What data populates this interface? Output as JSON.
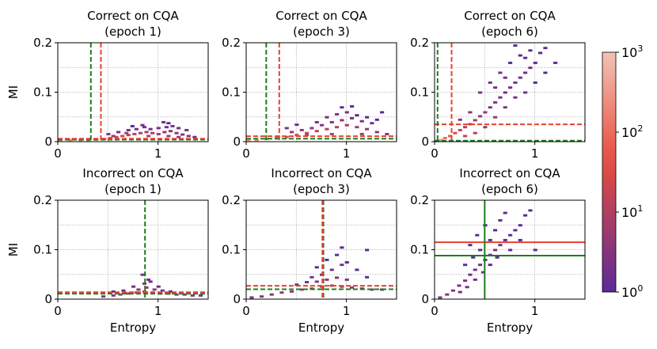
{
  "chart_data": {
    "type": "heatmap",
    "layout": "2x3 grid of 2D histograms",
    "xlabel": "Entropy",
    "ylabel": "MI",
    "xlim": [
      0,
      1.5
    ],
    "ylim": [
      0,
      0.2
    ],
    "xticks": [
      0,
      1
    ],
    "xtick_labels": [
      "0",
      "1"
    ],
    "yticks": [
      0,
      0.1,
      0.2
    ],
    "ytick_labels": [
      "0",
      "0.1",
      "0.2"
    ],
    "grid": true,
    "colorbar": {
      "scale": "log",
      "range": [
        1,
        1000
      ],
      "tick_base": "10",
      "ticks": [
        {
          "value": 1,
          "exp": "0"
        },
        {
          "value": 10,
          "exp": "1"
        },
        {
          "value": 100,
          "exp": "2"
        },
        {
          "value": 1000,
          "exp": "3"
        }
      ],
      "colors": {
        "low": "#5b2a96",
        "mid": "#e84d3d",
        "high": "#f2c3b6"
      }
    },
    "threshold_colors": {
      "green": "#1e7d1e",
      "red": "#e8402f"
    },
    "panels": [
      {
        "title_line1": "Correct on CQA",
        "title_line2": "(epoch 1)",
        "green_vline": 0.33,
        "red_vline": 0.43,
        "green_hline": 0.004,
        "red_hline": 0.006,
        "solid": false,
        "cells": [
          [
            0.02,
            0.004,
            180
          ],
          [
            0.12,
            0.004,
            160
          ],
          [
            0.22,
            0.004,
            150
          ],
          [
            0.3,
            0.004,
            120
          ],
          [
            0.38,
            0.005,
            90
          ],
          [
            0.46,
            0.006,
            60
          ],
          [
            0.52,
            0.008,
            40
          ],
          [
            0.58,
            0.01,
            25
          ],
          [
            0.64,
            0.012,
            20
          ],
          [
            0.7,
            0.014,
            15
          ],
          [
            0.76,
            0.016,
            12
          ],
          [
            0.82,
            0.018,
            10
          ],
          [
            0.88,
            0.02,
            8
          ],
          [
            0.94,
            0.018,
            7
          ],
          [
            1.0,
            0.016,
            6
          ],
          [
            1.06,
            0.02,
            5
          ],
          [
            1.12,
            0.022,
            4
          ],
          [
            1.18,
            0.018,
            4
          ],
          [
            1.24,
            0.015,
            3
          ],
          [
            1.3,
            0.012,
            3
          ],
          [
            1.36,
            0.01,
            2
          ],
          [
            0.5,
            0.016,
            3
          ],
          [
            0.6,
            0.02,
            2
          ],
          [
            0.7,
            0.024,
            2
          ],
          [
            0.78,
            0.026,
            2
          ],
          [
            0.86,
            0.03,
            2
          ],
          [
            0.92,
            0.026,
            2
          ],
          [
            1.0,
            0.028,
            2
          ],
          [
            1.08,
            0.03,
            2
          ],
          [
            0.84,
            0.034,
            2
          ],
          [
            1.05,
            0.04,
            2
          ],
          [
            1.14,
            0.032,
            2
          ],
          [
            1.2,
            0.028,
            2
          ],
          [
            1.28,
            0.024,
            2
          ],
          [
            0.74,
            0.032,
            1
          ],
          [
            1.1,
            0.038,
            1
          ],
          [
            0.55,
            0.012,
            5
          ],
          [
            0.68,
            0.018,
            6
          ],
          [
            0.9,
            0.012,
            9
          ],
          [
            1.1,
            0.012,
            6
          ],
          [
            1.2,
            0.01,
            5
          ]
        ]
      },
      {
        "title_line1": "Correct on CQA",
        "title_line2": "(epoch 3)",
        "green_vline": 0.2,
        "red_vline": 0.33,
        "green_hline": 0.006,
        "red_hline": 0.011,
        "solid": false,
        "cells": [
          [
            0.02,
            0.004,
            300
          ],
          [
            0.1,
            0.004,
            200
          ],
          [
            0.2,
            0.006,
            150
          ],
          [
            0.3,
            0.008,
            80
          ],
          [
            0.4,
            0.01,
            40
          ],
          [
            0.5,
            0.014,
            30
          ],
          [
            0.6,
            0.018,
            20
          ],
          [
            0.7,
            0.022,
            15
          ],
          [
            0.8,
            0.026,
            12
          ],
          [
            0.9,
            0.03,
            10
          ],
          [
            1.0,
            0.034,
            8
          ],
          [
            1.1,
            0.03,
            6
          ],
          [
            1.2,
            0.026,
            5
          ],
          [
            1.3,
            0.02,
            4
          ],
          [
            1.4,
            0.016,
            3
          ],
          [
            0.45,
            0.02,
            5
          ],
          [
            0.55,
            0.024,
            4
          ],
          [
            0.65,
            0.028,
            4
          ],
          [
            0.75,
            0.034,
            3
          ],
          [
            0.85,
            0.04,
            3
          ],
          [
            0.95,
            0.044,
            3
          ],
          [
            1.05,
            0.048,
            2
          ],
          [
            1.15,
            0.042,
            2
          ],
          [
            1.25,
            0.038,
            2
          ],
          [
            0.7,
            0.04,
            2
          ],
          [
            0.8,
            0.05,
            2
          ],
          [
            0.9,
            0.056,
            2
          ],
          [
            1.0,
            0.06,
            2
          ],
          [
            1.1,
            0.054,
            1
          ],
          [
            1.2,
            0.05,
            1
          ],
          [
            1.3,
            0.045,
            1
          ],
          [
            0.95,
            0.07,
            1
          ],
          [
            1.05,
            0.072,
            1
          ],
          [
            1.35,
            0.06,
            1
          ],
          [
            0.6,
            0.014,
            12
          ],
          [
            0.85,
            0.016,
            10
          ],
          [
            1.15,
            0.016,
            6
          ],
          [
            0.4,
            0.028,
            3
          ],
          [
            0.5,
            0.035,
            2
          ]
        ]
      },
      {
        "title_line1": "Correct on CQA",
        "title_line2": "(epoch 6)",
        "green_vline": 0.03,
        "red_vline": 0.17,
        "green_hline": 0.002,
        "red_hline": 0.035,
        "solid": false,
        "cells": [
          [
            0.02,
            0.002,
            600
          ],
          [
            0.06,
            0.004,
            300
          ],
          [
            0.1,
            0.008,
            120
          ],
          [
            0.15,
            0.012,
            60
          ],
          [
            0.2,
            0.018,
            30
          ],
          [
            0.25,
            0.024,
            20
          ],
          [
            0.3,
            0.03,
            12
          ],
          [
            0.35,
            0.036,
            8
          ],
          [
            0.4,
            0.044,
            6
          ],
          [
            0.45,
            0.052,
            5
          ],
          [
            0.5,
            0.06,
            4
          ],
          [
            0.55,
            0.07,
            3
          ],
          [
            0.6,
            0.08,
            3
          ],
          [
            0.65,
            0.09,
            2
          ],
          [
            0.7,
            0.1,
            2
          ],
          [
            0.75,
            0.11,
            2
          ],
          [
            0.8,
            0.12,
            2
          ],
          [
            0.85,
            0.13,
            2
          ],
          [
            0.9,
            0.14,
            2
          ],
          [
            0.95,
            0.15,
            2
          ],
          [
            1.0,
            0.16,
            1
          ],
          [
            1.05,
            0.18,
            1
          ],
          [
            1.1,
            0.19,
            1
          ],
          [
            0.3,
            0.012,
            15
          ],
          [
            0.4,
            0.018,
            10
          ],
          [
            0.5,
            0.03,
            6
          ],
          [
            0.6,
            0.05,
            4
          ],
          [
            0.7,
            0.07,
            3
          ],
          [
            0.8,
            0.09,
            2
          ],
          [
            0.9,
            0.1,
            2
          ],
          [
            0.45,
            0.1,
            2
          ],
          [
            0.55,
            0.12,
            2
          ],
          [
            0.65,
            0.14,
            2
          ],
          [
            0.75,
            0.16,
            1
          ],
          [
            0.85,
            0.175,
            1
          ],
          [
            0.95,
            0.185,
            1
          ],
          [
            0.35,
            0.06,
            3
          ],
          [
            0.25,
            0.045,
            4
          ],
          [
            0.6,
            0.11,
            2
          ],
          [
            0.7,
            0.13,
            2
          ],
          [
            1.0,
            0.12,
            1
          ],
          [
            1.1,
            0.14,
            1
          ],
          [
            0.9,
            0.17,
            1
          ],
          [
            0.8,
            0.195,
            1
          ],
          [
            1.2,
            0.16,
            1
          ]
        ]
      },
      {
        "title_line1": "Incorrect on CQA",
        "title_line2": "(epoch 1)",
        "green_vline": 0.87,
        "red_vline": null,
        "green_hline": 0.011,
        "red_hline": 0.014,
        "solid": false,
        "cells": [
          [
            0.45,
            0.006,
            3
          ],
          [
            0.55,
            0.008,
            4
          ],
          [
            0.62,
            0.01,
            5
          ],
          [
            0.7,
            0.012,
            6
          ],
          [
            0.78,
            0.014,
            8
          ],
          [
            0.86,
            0.016,
            10
          ],
          [
            0.94,
            0.014,
            8
          ],
          [
            1.02,
            0.012,
            6
          ],
          [
            1.1,
            0.012,
            5
          ],
          [
            1.18,
            0.01,
            4
          ],
          [
            1.26,
            0.01,
            3
          ],
          [
            1.34,
            0.008,
            3
          ],
          [
            1.42,
            0.008,
            2
          ],
          [
            0.8,
            0.02,
            3
          ],
          [
            0.88,
            0.024,
            4
          ],
          [
            0.96,
            0.02,
            3
          ],
          [
            1.04,
            0.018,
            2
          ],
          [
            1.12,
            0.016,
            2
          ],
          [
            0.86,
            0.032,
            3
          ],
          [
            0.9,
            0.04,
            2
          ],
          [
            0.84,
            0.05,
            2
          ],
          [
            0.92,
            0.036,
            2
          ],
          [
            0.75,
            0.026,
            2
          ],
          [
            1.0,
            0.026,
            2
          ],
          [
            0.55,
            0.016,
            2
          ],
          [
            0.65,
            0.018,
            2
          ]
        ]
      },
      {
        "title_line1": "Incorrect on CQA",
        "title_line2": "(epoch 3)",
        "green_vline": 0.77,
        "red_vline": 0.76,
        "green_hline": 0.02,
        "red_hline": 0.027,
        "solid": false,
        "cells": [
          [
            0.05,
            0.004,
            2
          ],
          [
            0.15,
            0.006,
            3
          ],
          [
            0.25,
            0.01,
            3
          ],
          [
            0.35,
            0.014,
            4
          ],
          [
            0.45,
            0.016,
            4
          ],
          [
            0.55,
            0.02,
            5
          ],
          [
            0.65,
            0.022,
            6
          ],
          [
            0.75,
            0.026,
            8
          ],
          [
            0.85,
            0.028,
            6
          ],
          [
            0.95,
            0.026,
            5
          ],
          [
            1.05,
            0.024,
            4
          ],
          [
            1.15,
            0.022,
            3
          ],
          [
            1.25,
            0.02,
            3
          ],
          [
            1.35,
            0.02,
            2
          ],
          [
            0.7,
            0.036,
            3
          ],
          [
            0.8,
            0.04,
            4
          ],
          [
            0.9,
            0.044,
            3
          ],
          [
            1.0,
            0.04,
            2
          ],
          [
            0.75,
            0.05,
            2
          ],
          [
            0.85,
            0.06,
            2
          ],
          [
            0.95,
            0.07,
            2
          ],
          [
            0.8,
            0.08,
            1
          ],
          [
            0.9,
            0.09,
            1
          ],
          [
            1.0,
            0.075,
            1
          ],
          [
            1.1,
            0.06,
            1
          ],
          [
            0.7,
            0.065,
            1
          ],
          [
            0.65,
            0.045,
            2
          ],
          [
            1.2,
            0.045,
            1
          ],
          [
            0.6,
            0.035,
            2
          ],
          [
            0.5,
            0.03,
            2
          ],
          [
            1.2,
            0.1,
            1
          ],
          [
            0.95,
            0.105,
            1
          ]
        ]
      },
      {
        "title_line1": "Incorrect on CQA",
        "title_line2": "(epoch 6)",
        "green_vline": 0.5,
        "red_vline": null,
        "green_hline": 0.088,
        "red_hline": 0.115,
        "solid": true,
        "cells": [
          [
            0.05,
            0.004,
            3
          ],
          [
            0.12,
            0.01,
            3
          ],
          [
            0.18,
            0.018,
            3
          ],
          [
            0.24,
            0.028,
            2
          ],
          [
            0.3,
            0.038,
            2
          ],
          [
            0.35,
            0.05,
            2
          ],
          [
            0.4,
            0.06,
            2
          ],
          [
            0.45,
            0.07,
            2
          ],
          [
            0.5,
            0.08,
            2
          ],
          [
            0.55,
            0.09,
            2
          ],
          [
            0.6,
            0.1,
            2
          ],
          [
            0.65,
            0.11,
            2
          ],
          [
            0.7,
            0.12,
            1
          ],
          [
            0.75,
            0.13,
            1
          ],
          [
            0.8,
            0.14,
            1
          ],
          [
            0.85,
            0.15,
            1
          ],
          [
            0.9,
            0.17,
            1
          ],
          [
            0.95,
            0.18,
            1
          ],
          [
            0.25,
            0.015,
            2
          ],
          [
            0.32,
            0.025,
            2
          ],
          [
            0.4,
            0.04,
            2
          ],
          [
            0.48,
            0.055,
            2
          ],
          [
            0.55,
            0.07,
            1
          ],
          [
            0.62,
            0.085,
            1
          ],
          [
            0.45,
            0.1,
            1
          ],
          [
            0.55,
            0.12,
            1
          ],
          [
            0.6,
            0.14,
            1
          ],
          [
            0.65,
            0.16,
            1
          ],
          [
            0.7,
            0.175,
            1
          ],
          [
            0.5,
            0.15,
            1
          ],
          [
            0.42,
            0.13,
            1
          ],
          [
            0.35,
            0.11,
            1
          ],
          [
            0.75,
            0.1,
            1
          ],
          [
            0.85,
            0.12,
            1
          ],
          [
            1.0,
            0.1,
            1
          ],
          [
            0.38,
            0.085,
            1
          ],
          [
            0.3,
            0.07,
            1
          ]
        ]
      }
    ]
  }
}
